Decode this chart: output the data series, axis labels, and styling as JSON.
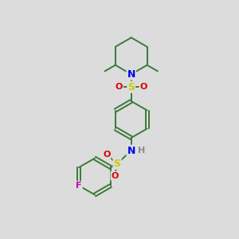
{
  "bg_color": "#dcdcdc",
  "atom_colors": {
    "C": "#3a7a3a",
    "N": "#0000ee",
    "S": "#cccc00",
    "O": "#dd0000",
    "F": "#cc00aa",
    "H": "#888888"
  },
  "bond_color": "#3a7a3a",
  "bond_lw": 1.4,
  "figsize": [
    3.0,
    3.0
  ],
  "dpi": 100,
  "xlim": [
    0,
    10
  ],
  "ylim": [
    0,
    10
  ]
}
